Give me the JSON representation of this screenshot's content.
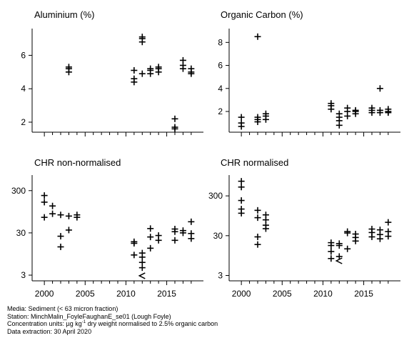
{
  "chart_data": [
    {
      "type": "scatter",
      "title": "Aluminium (%)",
      "yscale": "linear",
      "ylim": [
        1.4,
        7.6
      ],
      "yticks": [
        2,
        4,
        6
      ],
      "ytick_labels": [
        "2",
        "4",
        "6"
      ],
      "xlim": [
        1998.5,
        2019.5
      ],
      "xticks": [
        2000,
        2005,
        2010,
        2015
      ],
      "xtick_labels": [],
      "points": [
        {
          "x": 2003,
          "y": 5.0
        },
        {
          "x": 2003,
          "y": 5.2
        },
        {
          "x": 2003,
          "y": 5.3
        },
        {
          "x": 2011,
          "y": 4.4
        },
        {
          "x": 2011,
          "y": 4.6
        },
        {
          "x": 2011,
          "y": 5.1
        },
        {
          "x": 2012,
          "y": 4.9
        },
        {
          "x": 2012,
          "y": 6.8
        },
        {
          "x": 2012,
          "y": 7.0
        },
        {
          "x": 2012,
          "y": 7.1
        },
        {
          "x": 2013,
          "y": 4.9
        },
        {
          "x": 2013,
          "y": 5.1
        },
        {
          "x": 2013,
          "y": 5.2
        },
        {
          "x": 2014,
          "y": 5.0
        },
        {
          "x": 2014,
          "y": 5.2
        },
        {
          "x": 2014,
          "y": 5.3
        },
        {
          "x": 2016,
          "y": 1.6
        },
        {
          "x": 2016,
          "y": 1.7
        },
        {
          "x": 2016,
          "y": 2.2
        },
        {
          "x": 2017,
          "y": 5.2
        },
        {
          "x": 2017,
          "y": 5.4
        },
        {
          "x": 2017,
          "y": 5.7
        },
        {
          "x": 2018,
          "y": 4.9
        },
        {
          "x": 2018,
          "y": 5.0
        },
        {
          "x": 2018,
          "y": 5.2
        }
      ]
    },
    {
      "type": "scatter",
      "title": "Organic Carbon (%)",
      "yscale": "linear",
      "ylim": [
        0.2,
        9.2
      ],
      "yticks": [
        2,
        4,
        6,
        8
      ],
      "ytick_labels": [
        "2",
        "4",
        "6",
        "8"
      ],
      "xlim": [
        1998.5,
        2019.5
      ],
      "xticks": [
        2000,
        2005,
        2010,
        2015
      ],
      "xtick_labels": [],
      "points": [
        {
          "x": 2000,
          "y": 0.7
        },
        {
          "x": 2000,
          "y": 1.0
        },
        {
          "x": 2000,
          "y": 1.5
        },
        {
          "x": 2002,
          "y": 1.1
        },
        {
          "x": 2002,
          "y": 1.3
        },
        {
          "x": 2002,
          "y": 1.5
        },
        {
          "x": 2002,
          "y": 8.5
        },
        {
          "x": 2003,
          "y": 1.3
        },
        {
          "x": 2003,
          "y": 1.6
        },
        {
          "x": 2003,
          "y": 1.8
        },
        {
          "x": 2011,
          "y": 2.2
        },
        {
          "x": 2011,
          "y": 2.5
        },
        {
          "x": 2011,
          "y": 2.7
        },
        {
          "x": 2012,
          "y": 0.8
        },
        {
          "x": 2012,
          "y": 1.2
        },
        {
          "x": 2012,
          "y": 1.5
        },
        {
          "x": 2012,
          "y": 1.8
        },
        {
          "x": 2013,
          "y": 1.6
        },
        {
          "x": 2013,
          "y": 2.0
        },
        {
          "x": 2013,
          "y": 2.3
        },
        {
          "x": 2014,
          "y": 1.8
        },
        {
          "x": 2014,
          "y": 2.0
        },
        {
          "x": 2014,
          "y": 2.1
        },
        {
          "x": 2016,
          "y": 1.9
        },
        {
          "x": 2016,
          "y": 2.1
        },
        {
          "x": 2016,
          "y": 2.3
        },
        {
          "x": 2017,
          "y": 1.9
        },
        {
          "x": 2017,
          "y": 2.1
        },
        {
          "x": 2017,
          "y": 4.0
        },
        {
          "x": 2018,
          "y": 1.9
        },
        {
          "x": 2018,
          "y": 2.0
        },
        {
          "x": 2018,
          "y": 2.2
        }
      ]
    },
    {
      "type": "scatter",
      "title": "CHR non-normalised",
      "yscale": "log",
      "ylim": [
        2.2,
        700
      ],
      "yticks": [
        3,
        30,
        300
      ],
      "ytick_labels": [
        "3",
        "30",
        "300"
      ],
      "xlim": [
        1998.5,
        2019.5
      ],
      "xticks": [
        2000,
        2005,
        2010,
        2015
      ],
      "xtick_labels": [
        "2000",
        "2005",
        "2010",
        "2015"
      ],
      "points": [
        {
          "x": 2000,
          "y": 230
        },
        {
          "x": 2000,
          "y": 160
        },
        {
          "x": 2000,
          "y": 70
        },
        {
          "x": 2001,
          "y": 130
        },
        {
          "x": 2001,
          "y": 85
        },
        {
          "x": 2002,
          "y": 25
        },
        {
          "x": 2002,
          "y": 14
        },
        {
          "x": 2002,
          "y": 80
        },
        {
          "x": 2003,
          "y": 35
        },
        {
          "x": 2003,
          "y": 75
        },
        {
          "x": 2004,
          "y": 80
        },
        {
          "x": 2004,
          "y": 70
        },
        {
          "x": 2011,
          "y": 9
        },
        {
          "x": 2011,
          "y": 17
        },
        {
          "x": 2011,
          "y": 18.5
        },
        {
          "x": 2012,
          "y": 6
        },
        {
          "x": 2012,
          "y": 8
        },
        {
          "x": 2012,
          "y": 10
        },
        {
          "x": 2012,
          "y": 4.5
        },
        {
          "x": 2013,
          "y": 13
        },
        {
          "x": 2013,
          "y": 24
        },
        {
          "x": 2013,
          "y": 38
        },
        {
          "x": 2014,
          "y": 20
        },
        {
          "x": 2014,
          "y": 26
        },
        {
          "x": 2016,
          "y": 20
        },
        {
          "x": 2016,
          "y": 32
        },
        {
          "x": 2016,
          "y": 37
        },
        {
          "x": 2017,
          "y": 34
        },
        {
          "x": 2017,
          "y": 30
        },
        {
          "x": 2018,
          "y": 22
        },
        {
          "x": 2018,
          "y": 29
        },
        {
          "x": 2018,
          "y": 55
        }
      ],
      "less_than_points": [
        {
          "x": 2012,
          "y": 2.9
        }
      ]
    },
    {
      "type": "scatter",
      "title": "CHR normalised",
      "yscale": "log",
      "ylim": [
        2.2,
        1000
      ],
      "yticks": [
        3,
        30,
        300
      ],
      "ytick_labels": [
        "3",
        "30",
        "300"
      ],
      "xlim": [
        1998.5,
        2019.5
      ],
      "xticks": [
        2000,
        2005,
        2010,
        2015
      ],
      "xtick_labels": [
        "2000",
        "2005",
        "2010",
        "2015"
      ],
      "points": [
        {
          "x": 2000,
          "y": 700
        },
        {
          "x": 2000,
          "y": 500
        },
        {
          "x": 2000,
          "y": 230
        },
        {
          "x": 2000,
          "y": 140
        },
        {
          "x": 2000,
          "y": 110
        },
        {
          "x": 2002,
          "y": 130
        },
        {
          "x": 2002,
          "y": 85
        },
        {
          "x": 2002,
          "y": 28
        },
        {
          "x": 2002,
          "y": 18
        },
        {
          "x": 2003,
          "y": 100
        },
        {
          "x": 2003,
          "y": 75
        },
        {
          "x": 2003,
          "y": 55
        },
        {
          "x": 2003,
          "y": 45
        },
        {
          "x": 2011,
          "y": 8
        },
        {
          "x": 2011,
          "y": 12
        },
        {
          "x": 2011,
          "y": 17
        },
        {
          "x": 2011,
          "y": 20
        },
        {
          "x": 2012,
          "y": 17
        },
        {
          "x": 2012,
          "y": 19
        },
        {
          "x": 2012,
          "y": 9
        },
        {
          "x": 2013,
          "y": 14
        },
        {
          "x": 2013,
          "y": 35
        },
        {
          "x": 2013,
          "y": 38
        },
        {
          "x": 2014,
          "y": 22
        },
        {
          "x": 2014,
          "y": 27
        },
        {
          "x": 2014,
          "y": 33
        },
        {
          "x": 2016,
          "y": 28
        },
        {
          "x": 2016,
          "y": 36
        },
        {
          "x": 2016,
          "y": 44
        },
        {
          "x": 2017,
          "y": 25
        },
        {
          "x": 2017,
          "y": 32
        },
        {
          "x": 2017,
          "y": 42
        },
        {
          "x": 2018,
          "y": 29
        },
        {
          "x": 2018,
          "y": 38
        },
        {
          "x": 2018,
          "y": 65
        }
      ],
      "less_than_points": [
        {
          "x": 2012,
          "y": 7
        }
      ]
    }
  ],
  "footer": {
    "line1": "Media: Sediment (< 63 micron fraction)",
    "line2": "Station: MinchMalin_FoyleFaughanE_se01 (Lough Foyle)",
    "line3_pre": "Concentration units:  µg kg",
    "line3_sup": "-1",
    "line3_post": " dry weight normalised to 2.5% organic carbon",
    "line4": "Data extraction: 30 April 2020"
  }
}
